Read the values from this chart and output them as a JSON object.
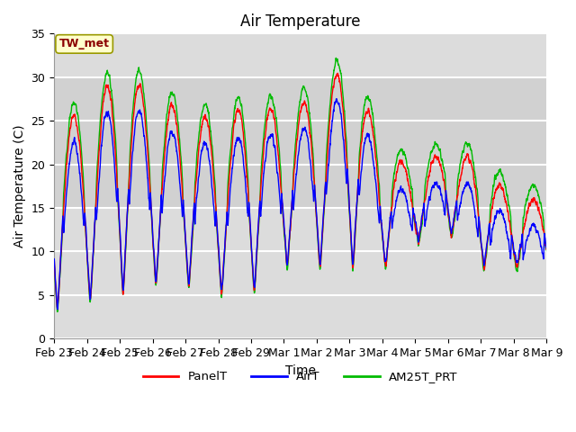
{
  "title": "Air Temperature",
  "xlabel": "Time",
  "ylabel": "Air Temperature (C)",
  "ylim": [
    0,
    35
  ],
  "annotation": "TW_met",
  "annotation_color": "#8B0000",
  "annotation_bg": "#FFFFCC",
  "bg_color": "#DCDCDC",
  "grid_color": "#FFFFFF",
  "tick_labels": [
    "Feb 23",
    "Feb 24",
    "Feb 25",
    "Feb 26",
    "Feb 27",
    "Feb 28",
    "Feb 29",
    "Mar 1",
    "Mar 2",
    "Mar 3",
    "Mar 4",
    "Mar 5",
    "Mar 6",
    "Mar 7",
    "Mar 8",
    "Mar 9"
  ],
  "colors": {
    "PanelT": "#FF0000",
    "AirT": "#0000FF",
    "AM25T_PRT": "#00BB00"
  },
  "line_width": 1.0,
  "figsize": [
    6.4,
    4.8
  ],
  "dpi": 100
}
